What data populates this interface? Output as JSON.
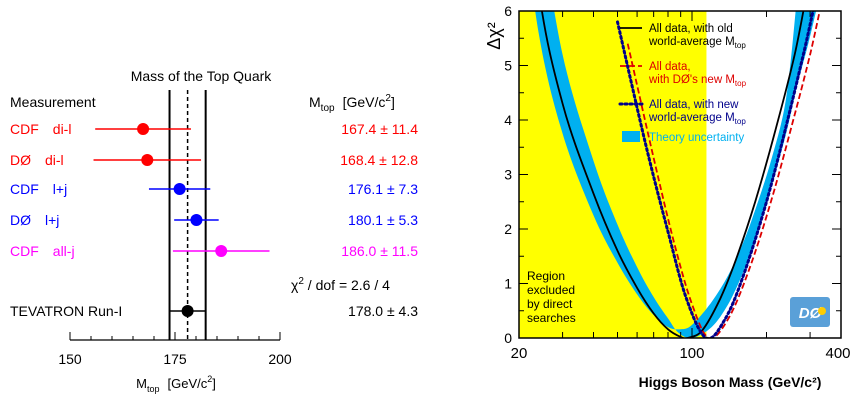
{
  "chart_data": [
    {
      "type": "scatter",
      "title": "Mass of the Top Quark",
      "header_left": "Measurement",
      "header_right": "M",
      "header_right_sub": "top",
      "header_right_unit": "[GeV/c",
      "header_right_unit_sup": "2",
      "header_right_unit_end": "]",
      "xlabel": "M",
      "xlabel_sub": "top",
      "xlabel_unit": "[GeV/c",
      "xlabel_unit_sup": "2",
      "xlabel_unit_end": "]",
      "xlim": [
        150,
        200
      ],
      "xticks": [
        "150",
        "175",
        "200"
      ],
      "combined_band": {
        "center": 178.0,
        "low": 173.7,
        "high": 182.3
      },
      "measurements": [
        {
          "label": "CDF di-l",
          "value": 167.4,
          "error": 11.4,
          "text": "167.4 ± 11.4",
          "color": "#ff0000"
        },
        {
          "label": "DØ di-l",
          "value": 168.4,
          "error": 12.8,
          "text": "168.4 ± 12.8",
          "color": "#ff0000"
        },
        {
          "label": "CDF l+j",
          "value": 176.1,
          "error": 7.3,
          "text": "176.1 ±  7.3",
          "color": "#0000ff"
        },
        {
          "label": "DØ l+j",
          "value": 180.1,
          "error": 5.3,
          "text": "180.1 ±  5.3",
          "color": "#0000ff"
        },
        {
          "label": "CDF all-j",
          "value": 186.0,
          "error": 11.5,
          "text": "186.0 ± 11.5",
          "color": "#ff00ff"
        }
      ],
      "chi2": {
        "symbol": "χ",
        "sup": "2",
        "text": " / dof  =  2.6 / 4"
      },
      "combined": {
        "label": "TEVATRON Run-I",
        "value": 178.0,
        "error": 4.3,
        "text": "178.0 ±  4.3",
        "color": "#000000"
      }
    },
    {
      "type": "line",
      "ylabel": "Δχ²",
      "xlabel": "Higgs Boson Mass  (GeV/c²)",
      "x_scale": "log",
      "xlim": [
        20,
        400
      ],
      "ylim": [
        0,
        6
      ],
      "xticks": [
        {
          "value": 20,
          "label": "20"
        },
        {
          "value": 100,
          "label": "100"
        },
        {
          "value": 400,
          "label": "400"
        }
      ],
      "yticks": [
        0,
        1,
        2,
        3,
        4,
        5,
        6
      ],
      "excluded_region": {
        "from": 20,
        "to": 114.4,
        "color": "#ffff00"
      },
      "excluded_text": [
        "Region",
        "excluded",
        "by direct",
        "searches"
      ],
      "series": [
        {
          "name": "All data, with old world-average M_top",
          "min_x": 96,
          "style": "solid",
          "color": "#000000",
          "x": [
            20,
            24,
            30,
            40,
            50,
            60,
            70,
            80,
            90,
            96,
            110,
            130,
            150,
            180,
            220,
            260,
            290
          ],
          "y": [
            10.0,
            6.4,
            4.3,
            2.65,
            1.6,
            0.92,
            0.45,
            0.16,
            0.02,
            0.0,
            0.14,
            0.72,
            1.42,
            2.5,
            3.9,
            5.2,
            6.3
          ]
        },
        {
          "name": "All data, with DØ's new M_top",
          "min_x": 117,
          "style": "dashed",
          "color": "#dd0000",
          "x": [
            55,
            70,
            85,
            100,
            117,
            140,
            170,
            210,
            260,
            300,
            330
          ],
          "y": [
            5.4,
            3.3,
            1.72,
            0.62,
            0.0,
            0.35,
            1.25,
            2.55,
            4.1,
            5.2,
            6.05
          ]
        },
        {
          "name": "All data, with new world-average M_top",
          "min_x": 114,
          "style": "dotted",
          "color": "#00008b",
          "x": [
            50,
            65,
            80,
            95,
            114,
            135,
            160,
            200,
            245,
            285,
            310
          ],
          "y": [
            5.8,
            3.55,
            1.95,
            0.72,
            0.0,
            0.32,
            1.1,
            2.5,
            4.05,
            5.3,
            6.05
          ]
        }
      ],
      "theory_band": {
        "name": "Theory uncertainty",
        "color": "#00b0f0",
        "upper": {
          "x": [
            20,
            24,
            30,
            40,
            50,
            60,
            70,
            80,
            90,
            100,
            120,
            140,
            160,
            180,
            210,
            240,
            265
          ],
          "y": [
            8.4,
            5.6,
            3.75,
            2.25,
            1.38,
            0.8,
            0.42,
            0.2,
            0.16,
            0.24,
            0.66,
            1.15,
            1.72,
            2.35,
            3.3,
            4.4,
            6.2
          ]
        },
        "lower": {
          "x": [
            24,
            30,
            40,
            50,
            60,
            70,
            80,
            88,
            100,
            120,
            140,
            160,
            180,
            210,
            240,
            265,
            295,
            325
          ],
          "y": [
            7.8,
            5.2,
            3.25,
            2.08,
            1.3,
            0.75,
            0.36,
            0.1,
            0.0,
            0.2,
            0.62,
            1.18,
            1.82,
            2.8,
            3.75,
            4.6,
            5.4,
            6.2
          ]
        }
      },
      "legend": [
        {
          "lines": [
            "All data, with old",
            "world-average M_top"
          ],
          "color": "#000000",
          "style": "solid"
        },
        {
          "lines": [
            "All data,",
            "with DØ's new M_top"
          ],
          "color": "#dd0000",
          "style": "dashed"
        },
        {
          "lines": [
            "All data, with new",
            "world-average M_top"
          ],
          "color": "#00008b",
          "style": "dotted"
        },
        {
          "lines": [
            "Theory uncertainty"
          ],
          "color": "#00b0f0",
          "style": "box"
        }
      ],
      "logo": "DØ"
    }
  ]
}
